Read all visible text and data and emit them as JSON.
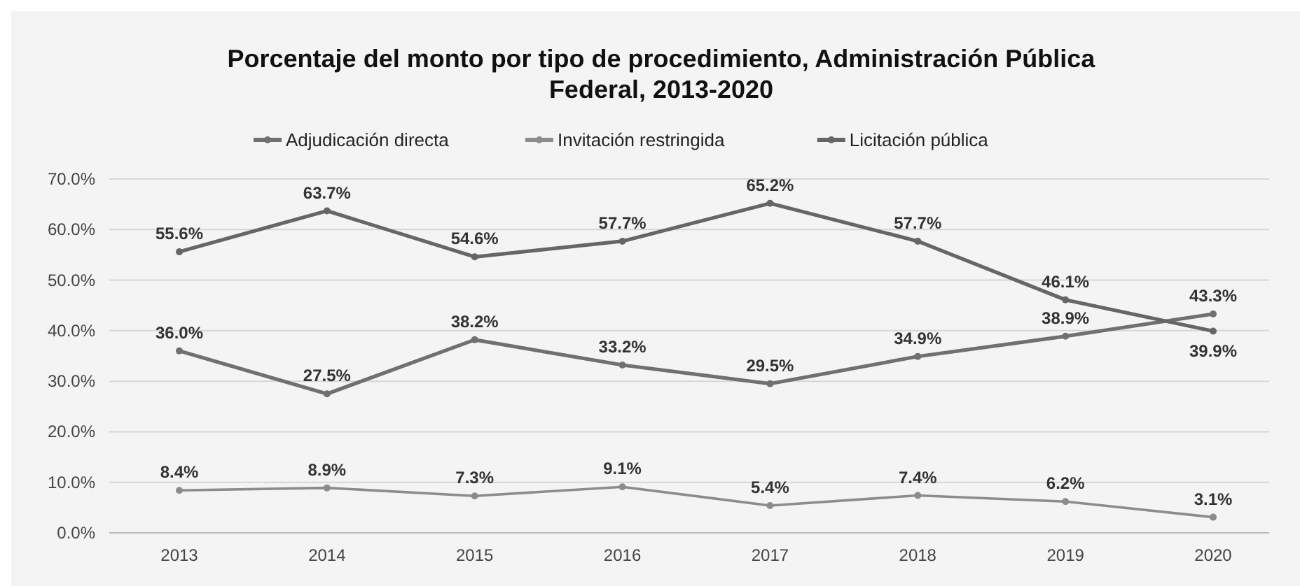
{
  "chart_data": {
    "type": "line",
    "title": "Porcentaje del monto por tipo de procedimiento, Administración Pública Federal, 2013-2020",
    "categories": [
      "2013",
      "2014",
      "2015",
      "2016",
      "2017",
      "2018",
      "2019",
      "2020"
    ],
    "series": [
      {
        "name": "Adjudicación directa",
        "color": "#707070",
        "values": [
          36.0,
          27.5,
          38.2,
          33.2,
          29.5,
          34.9,
          38.9,
          43.3
        ],
        "value_labels": [
          "36.0%",
          "27.5%",
          "38.2%",
          "33.2%",
          "29.5%",
          "34.9%",
          "38.9%",
          "43.3%"
        ]
      },
      {
        "name": "Invitación restringida",
        "color": "#8c8c8c",
        "values": [
          8.4,
          8.9,
          7.3,
          9.1,
          5.4,
          7.4,
          6.2,
          3.1
        ],
        "value_labels": [
          "8.4%",
          "8.9%",
          "7.3%",
          "9.1%",
          "5.4%",
          "7.4%",
          "6.2%",
          "3.1%"
        ]
      },
      {
        "name": "Licitación pública",
        "color": "#666666",
        "values": [
          55.6,
          63.7,
          54.6,
          57.7,
          65.2,
          57.7,
          46.1,
          39.9
        ],
        "value_labels": [
          "55.6%",
          "63.7%",
          "54.6%",
          "57.7%",
          "65.2%",
          "57.7%",
          "46.1%",
          "39.9%"
        ]
      }
    ],
    "ylim": [
      0,
      70
    ],
    "yticks": [
      {
        "value": 0,
        "label": "0.0%"
      },
      {
        "value": 10,
        "label": "10.0%"
      },
      {
        "value": 20,
        "label": "20.0%"
      },
      {
        "value": 30,
        "label": "30.0%"
      },
      {
        "value": 40,
        "label": "40.0%"
      },
      {
        "value": 50,
        "label": "50.0%"
      },
      {
        "value": 60,
        "label": "60.0%"
      },
      {
        "value": 70,
        "label": "70.0%"
      }
    ],
    "grid": "y",
    "legend": "top",
    "marker": "circle",
    "line_style": "solid"
  }
}
